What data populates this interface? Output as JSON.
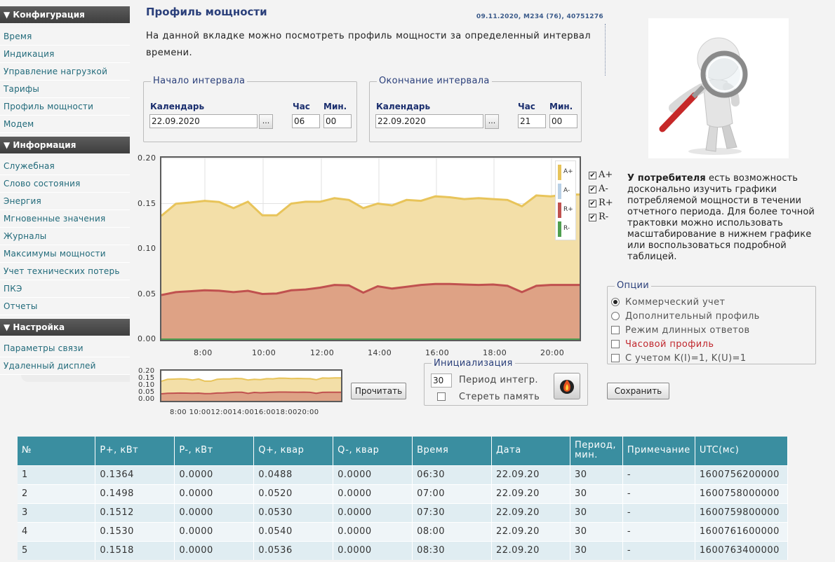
{
  "sidebar": {
    "sections": [
      {
        "title": "▼ Конфигурация",
        "items": [
          "Время",
          "Индикация",
          "Управление нагрузкой",
          "Тарифы",
          "Профиль мощности",
          "Модем"
        ]
      },
      {
        "title": "▼ Информация",
        "items": [
          "Служебная",
          "Слово состояния",
          "Энергия",
          "Мгновенные значения",
          "Журналы",
          "Максимумы мощности",
          "Учет технических потерь",
          "ПКЭ",
          "Отчеты"
        ]
      },
      {
        "title": "▼ Настройка",
        "items": [
          "Параметры связи",
          "Удаленный дисплей"
        ]
      }
    ]
  },
  "header": {
    "title": "Профиль мощности",
    "meta": "09.11.2020, M234 (76), 40751276",
    "description": "На данной вкладке можно посмотреть профиль мощности за определенный интервал времени."
  },
  "interval_start": {
    "legend": "Начало интервала",
    "calendar_label": "Календарь",
    "hour_label": "Час",
    "min_label": "Мин.",
    "date": "22.09.2020",
    "hour": "06",
    "min": "00",
    "pick": "..."
  },
  "interval_end": {
    "legend": "Окончание интервала",
    "calendar_label": "Календарь",
    "hour_label": "Час",
    "min_label": "Мин.",
    "date": "22.09.2020",
    "hour": "21",
    "min": "00",
    "pick": "..."
  },
  "chart_data": {
    "type": "area",
    "x": [
      "06:30",
      "07:00",
      "07:30",
      "08:00",
      "08:30",
      "09:00",
      "09:30",
      "10:00",
      "10:30",
      "11:00",
      "11:30",
      "12:00",
      "12:30",
      "13:00",
      "13:30",
      "14:00",
      "14:30",
      "15:00",
      "15:30",
      "16:00",
      "16:30",
      "17:00",
      "17:30",
      "18:00",
      "18:30",
      "19:00",
      "19:30",
      "20:00",
      "20:30",
      "21:00"
    ],
    "series": [
      {
        "name": "A+",
        "color": "#e8c45a",
        "values": [
          0.1364,
          0.1498,
          0.1512,
          0.153,
          0.1518,
          0.145,
          0.152,
          0.137,
          0.137,
          0.15,
          0.152,
          0.152,
          0.156,
          0.154,
          0.145,
          0.15,
          0.148,
          0.154,
          0.153,
          0.158,
          0.157,
          0.155,
          0.156,
          0.155,
          0.154,
          0.147,
          0.159,
          0.158,
          0.16,
          0.16
        ]
      },
      {
        "name": "A-",
        "color": "#a9c4df",
        "values": [
          0,
          0,
          0,
          0,
          0,
          0,
          0,
          0,
          0,
          0,
          0,
          0,
          0,
          0,
          0,
          0,
          0,
          0,
          0,
          0,
          0,
          0,
          0,
          0,
          0,
          0,
          0,
          0,
          0,
          0
        ]
      },
      {
        "name": "R+",
        "color": "#c0514f",
        "values": [
          0.0488,
          0.052,
          0.053,
          0.054,
          0.0536,
          0.052,
          0.0535,
          0.05,
          0.0505,
          0.054,
          0.055,
          0.057,
          0.06,
          0.0595,
          0.0515,
          0.0585,
          0.056,
          0.058,
          0.06,
          0.061,
          0.061,
          0.0605,
          0.06,
          0.0605,
          0.059,
          0.052,
          0.059,
          0.06,
          0.06,
          0.06
        ]
      },
      {
        "name": "R-",
        "color": "#4f9f4f",
        "values": [
          0,
          0,
          0,
          0,
          0,
          0,
          0,
          0,
          0,
          0,
          0,
          0,
          0,
          0,
          0,
          0,
          0,
          0,
          0,
          0,
          0,
          0,
          0,
          0,
          0,
          0,
          0,
          0,
          0,
          0
        ]
      }
    ],
    "yticks": [
      "0.00",
      "0.05",
      "0.10",
      "0.15",
      "0.20"
    ],
    "ylim": [
      0,
      0.2
    ],
    "xticks": [
      "8:00",
      "10:00",
      "12:00",
      "14:00",
      "16:00",
      "18:00",
      "20:00"
    ],
    "grid": true,
    "legend_position": "top-right"
  },
  "mini_chart": {
    "yticks": [
      "0.00",
      "0.05",
      "0.10",
      "0.15",
      "0.20"
    ],
    "xticks": "8:00 10:0012:0014:0016:0018:0020:00"
  },
  "series_checks": [
    {
      "label": "A+",
      "checked": true
    },
    {
      "label": "A-",
      "checked": true
    },
    {
      "label": "R+",
      "checked": true
    },
    {
      "label": "R-",
      "checked": true
    }
  ],
  "info": {
    "bold": "У потребителя",
    "text": " есть возможность досконально изучить графики потребляемой мощности в течении отчетного периода. Для более точной трактовки можно использовать масштабирование в нижнем графике или воспользоваться подробной таблицей."
  },
  "options": {
    "legend": "Опции",
    "commercial": "Коммерческий учет",
    "additional": "Дополнительный профиль",
    "long_answers": "Режим длинных ответов",
    "hourly": "Часовой профиль",
    "coef": "С учетом K(I)=1, K(U)=1"
  },
  "init": {
    "legend": "Инициализация",
    "period_value": "30",
    "period_label": "Период интегр.",
    "erase_label": "Стереть память"
  },
  "buttons": {
    "read": "Прочитать",
    "save": "Сохранить"
  },
  "table": {
    "headers": [
      "№",
      "P+, кВт",
      "P-, кВт",
      "Q+, квар",
      "Q-, квар",
      "Время",
      "Дата",
      "Период, мин.",
      "Примечание",
      "UTC(мс)"
    ],
    "rows": [
      [
        "1",
        "0.1364",
        "0.0000",
        "0.0488",
        "0.0000",
        "06:30",
        "22.09.20",
        "30",
        "-",
        "1600756200000"
      ],
      [
        "2",
        "0.1498",
        "0.0000",
        "0.0520",
        "0.0000",
        "07:00",
        "22.09.20",
        "30",
        "-",
        "1600758000000"
      ],
      [
        "3",
        "0.1512",
        "0.0000",
        "0.0530",
        "0.0000",
        "07:30",
        "22.09.20",
        "30",
        "-",
        "1600759800000"
      ],
      [
        "4",
        "0.1530",
        "0.0000",
        "0.0540",
        "0.0000",
        "08:00",
        "22.09.20",
        "30",
        "-",
        "1600761600000"
      ],
      [
        "5",
        "0.1518",
        "0.0000",
        "0.0536",
        "0.0000",
        "08:30",
        "22.09.20",
        "30",
        "-",
        "1600763400000"
      ]
    ]
  }
}
